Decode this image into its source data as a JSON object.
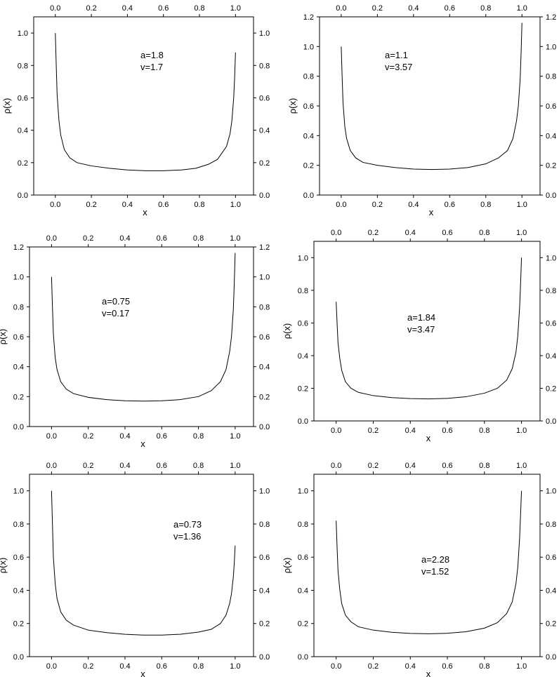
{
  "chart_data": [
    {
      "type": "line",
      "xlabel": "x",
      "ylabel": "ρ(x)",
      "xlim": [
        -0.12,
        1.1
      ],
      "ylim": [
        0,
        1.1
      ],
      "xticks": [
        "0.0",
        "0.2",
        "0.4",
        "0.6",
        "0.8",
        "1.0"
      ],
      "yticks": [
        "0.0",
        "0.2",
        "0.4",
        "0.6",
        "0.8",
        "1.0"
      ],
      "annotation": [
        "a=1.8",
        "v=1.7"
      ],
      "series": [
        {
          "x": [
            0,
            0.005,
            0.01,
            0.02,
            0.03,
            0.05,
            0.08,
            0.12,
            0.2,
            0.3,
            0.4,
            0.5,
            0.6,
            0.7,
            0.78,
            0.85,
            0.9,
            0.95,
            0.97,
            0.98,
            0.99,
            0.995,
            1.0
          ],
          "y": [
            1.0,
            0.8,
            0.62,
            0.46,
            0.37,
            0.28,
            0.23,
            0.2,
            0.18,
            0.165,
            0.155,
            0.15,
            0.15,
            0.155,
            0.165,
            0.19,
            0.22,
            0.3,
            0.38,
            0.46,
            0.6,
            0.72,
            0.88
          ]
        }
      ]
    },
    {
      "type": "line",
      "xlabel": "x",
      "ylabel": "ρ(x)",
      "xlim": [
        -0.12,
        1.1
      ],
      "ylim": [
        0,
        1.2
      ],
      "xticks": [
        "0.0",
        "0.2",
        "0.4",
        "0.6",
        "0.8",
        "1.0"
      ],
      "yticks": [
        "0.0",
        "0.2",
        "0.4",
        "0.6",
        "0.8",
        "1.0",
        "1.2"
      ],
      "annotation": [
        "a=1.1",
        "v=3.57"
      ],
      "series": [
        {
          "x": [
            0,
            0.005,
            0.01,
            0.02,
            0.03,
            0.05,
            0.08,
            0.12,
            0.2,
            0.3,
            0.4,
            0.5,
            0.6,
            0.7,
            0.8,
            0.87,
            0.92,
            0.95,
            0.97,
            0.98,
            0.99,
            0.995,
            1.0
          ],
          "y": [
            1.0,
            0.8,
            0.62,
            0.46,
            0.38,
            0.3,
            0.25,
            0.22,
            0.2,
            0.185,
            0.175,
            0.172,
            0.175,
            0.185,
            0.21,
            0.25,
            0.3,
            0.38,
            0.5,
            0.6,
            0.78,
            0.95,
            1.16
          ]
        }
      ]
    },
    {
      "type": "line",
      "xlabel": "x",
      "ylabel": "ρ(x)",
      "xlim": [
        -0.12,
        1.1
      ],
      "ylim": [
        0,
        1.2
      ],
      "xticks": [
        "0.0",
        "0.2",
        "0.4",
        "0.6",
        "0.8",
        "1.0"
      ],
      "yticks": [
        "0.0",
        "0.2",
        "0.4",
        "0.6",
        "0.8",
        "1.0",
        "1.2"
      ],
      "annotation": [
        "a=0.75",
        "v=0.17"
      ],
      "series": [
        {
          "x": [
            0,
            0.005,
            0.01,
            0.02,
            0.03,
            0.05,
            0.08,
            0.12,
            0.2,
            0.3,
            0.4,
            0.5,
            0.6,
            0.7,
            0.8,
            0.87,
            0.92,
            0.95,
            0.97,
            0.98,
            0.99,
            0.995,
            1.0
          ],
          "y": [
            1.0,
            0.8,
            0.62,
            0.46,
            0.38,
            0.3,
            0.25,
            0.22,
            0.195,
            0.18,
            0.172,
            0.17,
            0.172,
            0.18,
            0.2,
            0.24,
            0.3,
            0.38,
            0.5,
            0.6,
            0.78,
            0.95,
            1.16
          ]
        }
      ]
    },
    {
      "type": "line",
      "xlabel": "x",
      "ylabel": "ρ(x)",
      "xlim": [
        -0.12,
        1.1
      ],
      "ylim": [
        0,
        1.1
      ],
      "xticks": [
        "0.0",
        "0.2",
        "0.4",
        "0.6",
        "0.8",
        "1.0"
      ],
      "yticks": [
        "0.0",
        "0.2",
        "0.4",
        "0.6",
        "0.8",
        "1.0"
      ],
      "annotation": [
        "a=1.84",
        "v=3.47"
      ],
      "series": [
        {
          "x": [
            0,
            0.005,
            0.01,
            0.02,
            0.03,
            0.05,
            0.08,
            0.12,
            0.2,
            0.3,
            0.4,
            0.5,
            0.6,
            0.7,
            0.8,
            0.87,
            0.92,
            0.95,
            0.97,
            0.98,
            0.99,
            0.995,
            1.0
          ],
          "y": [
            0.73,
            0.6,
            0.48,
            0.38,
            0.31,
            0.24,
            0.2,
            0.175,
            0.155,
            0.143,
            0.137,
            0.135,
            0.138,
            0.148,
            0.17,
            0.2,
            0.25,
            0.32,
            0.42,
            0.52,
            0.7,
            0.84,
            1.0
          ]
        }
      ]
    },
    {
      "type": "line",
      "xlabel": "x",
      "ylabel": "ρ(x)",
      "xlim": [
        -0.12,
        1.1
      ],
      "ylim": [
        0,
        1.1
      ],
      "xticks": [
        "0.0",
        "0.2",
        "0.4",
        "0.6",
        "0.8",
        "1.0"
      ],
      "yticks": [
        "0.0",
        "0.2",
        "0.4",
        "0.6",
        "0.8",
        "1.0"
      ],
      "annotation": [
        "a=0.73",
        "v=1.36"
      ],
      "series": [
        {
          "x": [
            0,
            0.005,
            0.01,
            0.02,
            0.03,
            0.05,
            0.08,
            0.12,
            0.2,
            0.3,
            0.4,
            0.5,
            0.6,
            0.7,
            0.8,
            0.87,
            0.92,
            0.95,
            0.97,
            0.98,
            0.99,
            0.995,
            1.0
          ],
          "y": [
            1.0,
            0.8,
            0.6,
            0.44,
            0.35,
            0.27,
            0.22,
            0.19,
            0.16,
            0.145,
            0.135,
            0.13,
            0.13,
            0.135,
            0.148,
            0.165,
            0.2,
            0.25,
            0.32,
            0.38,
            0.48,
            0.56,
            0.67
          ]
        }
      ]
    },
    {
      "type": "line",
      "xlabel": "x",
      "ylabel": "ρ(x)",
      "xlim": [
        -0.12,
        1.1
      ],
      "ylim": [
        0,
        1.1
      ],
      "xticks": [
        "0.0",
        "0.2",
        "0.4",
        "0.6",
        "0.8",
        "1.0"
      ],
      "yticks": [
        "0.0",
        "0.2",
        "0.4",
        "0.6",
        "0.8",
        "1.0"
      ],
      "annotation": [
        "a=2.28",
        "v=1.52"
      ],
      "series": [
        {
          "x": [
            0,
            0.005,
            0.01,
            0.02,
            0.03,
            0.05,
            0.08,
            0.12,
            0.2,
            0.3,
            0.4,
            0.5,
            0.6,
            0.7,
            0.8,
            0.87,
            0.92,
            0.95,
            0.97,
            0.98,
            0.99,
            0.995,
            1.0
          ],
          "y": [
            0.82,
            0.66,
            0.52,
            0.4,
            0.32,
            0.25,
            0.21,
            0.18,
            0.16,
            0.147,
            0.14,
            0.138,
            0.141,
            0.15,
            0.172,
            0.205,
            0.26,
            0.33,
            0.44,
            0.54,
            0.72,
            0.86,
            1.0
          ]
        }
      ]
    }
  ]
}
